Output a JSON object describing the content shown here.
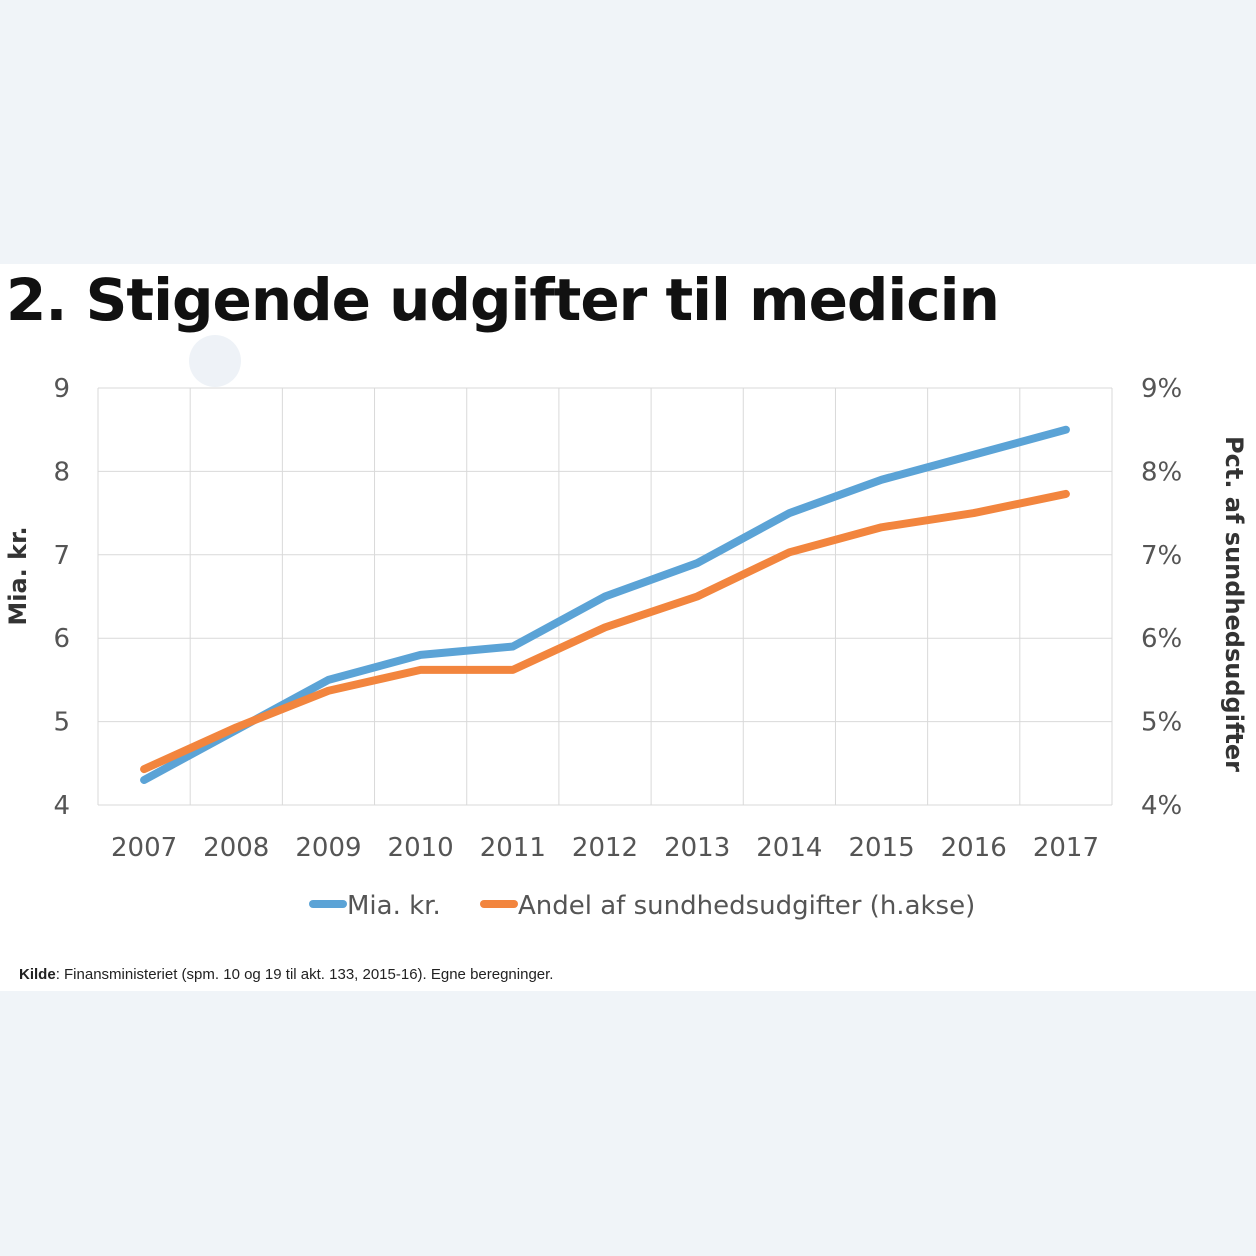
{
  "title": "2. Stigende udgifter til medicin",
  "source": {
    "label": "Kilde",
    "text": ": Finansministeriet (spm. 10 og 19 til akt. 133, 2015-16). Egne beregninger."
  },
  "colors": {
    "series_blue": "#5ba3d6",
    "series_orange": "#f2853e",
    "grid": "#d9d9d9"
  },
  "chart_data": {
    "type": "line",
    "x": [
      "2007",
      "2008",
      "2009",
      "2010",
      "2011",
      "2012",
      "2013",
      "2014",
      "2015",
      "2016",
      "2017"
    ],
    "ylabel": "Mia. kr.",
    "y2label": "Pct. af sundhedsudgifter",
    "ylim": [
      4,
      9
    ],
    "y2lim": [
      4,
      9
    ],
    "yticks": [
      "4",
      "5",
      "6",
      "7",
      "8",
      "9"
    ],
    "y2ticks": [
      "4%",
      "5%",
      "6%",
      "7%",
      "8%",
      "9%"
    ],
    "grid": true,
    "legend_position": "bottom",
    "series": [
      {
        "name": "Mia. kr.",
        "axis": "left",
        "color": "#5ba3d6",
        "values": [
          4.3,
          4.9,
          5.5,
          5.8,
          5.9,
          6.5,
          6.9,
          7.5,
          7.9,
          8.2,
          8.5
        ]
      },
      {
        "name": "Andel af sundhedsudgifter (h.akse)",
        "axis": "right",
        "color": "#f2853e",
        "values": [
          4.43,
          4.93,
          5.37,
          5.62,
          5.62,
          6.13,
          6.5,
          7.03,
          7.33,
          7.5,
          7.73
        ]
      }
    ]
  }
}
